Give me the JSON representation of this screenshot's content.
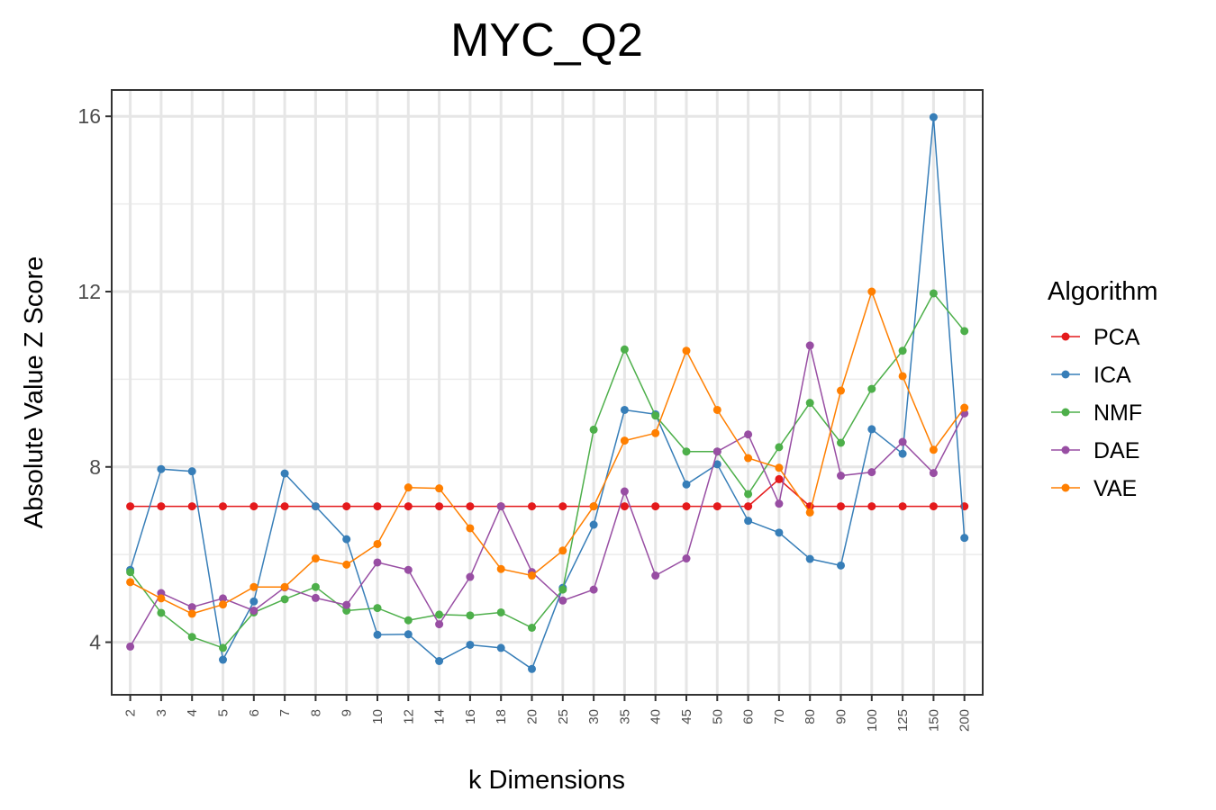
{
  "chart_data": {
    "type": "line",
    "title": "MYC_Q2",
    "xlabel": "k Dimensions",
    "ylabel": "Absolute Value Z Score",
    "categories": [
      "2",
      "3",
      "4",
      "5",
      "6",
      "7",
      "8",
      "9",
      "10",
      "12",
      "14",
      "16",
      "18",
      "20",
      "25",
      "30",
      "35",
      "40",
      "45",
      "50",
      "60",
      "70",
      "80",
      "90",
      "100",
      "125",
      "150",
      "200"
    ],
    "yticks": [
      4,
      8,
      12,
      16
    ],
    "ylim": [
      2.8,
      16.6
    ],
    "grid": true,
    "legend": {
      "title": "Algorithm",
      "position": "right"
    },
    "series": [
      {
        "name": "PCA",
        "color": "#e41a1c",
        "values": [
          7.1,
          7.1,
          7.1,
          7.1,
          7.1,
          7.1,
          7.1,
          7.1,
          7.1,
          7.1,
          7.1,
          7.1,
          7.1,
          7.1,
          7.1,
          7.1,
          7.1,
          7.1,
          7.1,
          7.1,
          7.1,
          7.72,
          7.1,
          7.1,
          7.1,
          7.1,
          7.1,
          7.1
        ]
      },
      {
        "name": "ICA",
        "color": "#377eb8",
        "values": [
          5.65,
          7.95,
          7.9,
          3.6,
          4.93,
          7.85,
          7.1,
          6.35,
          4.17,
          4.18,
          3.57,
          3.94,
          3.87,
          3.39,
          5.24,
          6.68,
          9.3,
          9.2,
          7.6,
          8.06,
          6.77,
          6.5,
          5.9,
          5.75,
          8.86,
          8.3,
          15.98,
          6.38
        ]
      },
      {
        "name": "NMF",
        "color": "#4daf4a",
        "values": [
          5.6,
          4.67,
          4.12,
          3.87,
          4.68,
          4.98,
          5.26,
          4.72,
          4.78,
          4.5,
          4.63,
          4.61,
          4.68,
          4.33,
          5.2,
          8.85,
          10.68,
          9.17,
          8.35,
          8.35,
          7.38,
          8.45,
          9.46,
          8.55,
          9.78,
          10.65,
          11.96,
          11.1
        ]
      },
      {
        "name": "DAE",
        "color": "#984ea3",
        "values": [
          3.9,
          5.12,
          4.8,
          5.0,
          4.72,
          5.25,
          5.01,
          4.85,
          5.82,
          5.65,
          4.41,
          5.49,
          7.1,
          5.6,
          4.95,
          5.2,
          7.44,
          5.52,
          5.91,
          8.35,
          8.74,
          7.16,
          10.77,
          7.8,
          7.88,
          8.57,
          7.86,
          9.22
        ]
      },
      {
        "name": "VAE",
        "color": "#ff7f00",
        "values": [
          5.37,
          5.0,
          4.65,
          4.86,
          5.26,
          5.26,
          5.91,
          5.77,
          6.24,
          7.53,
          7.51,
          6.6,
          5.67,
          5.52,
          6.09,
          7.1,
          8.6,
          8.77,
          10.65,
          9.3,
          8.2,
          7.98,
          6.96,
          9.74,
          12.0,
          10.07,
          8.39,
          9.35
        ]
      }
    ]
  }
}
